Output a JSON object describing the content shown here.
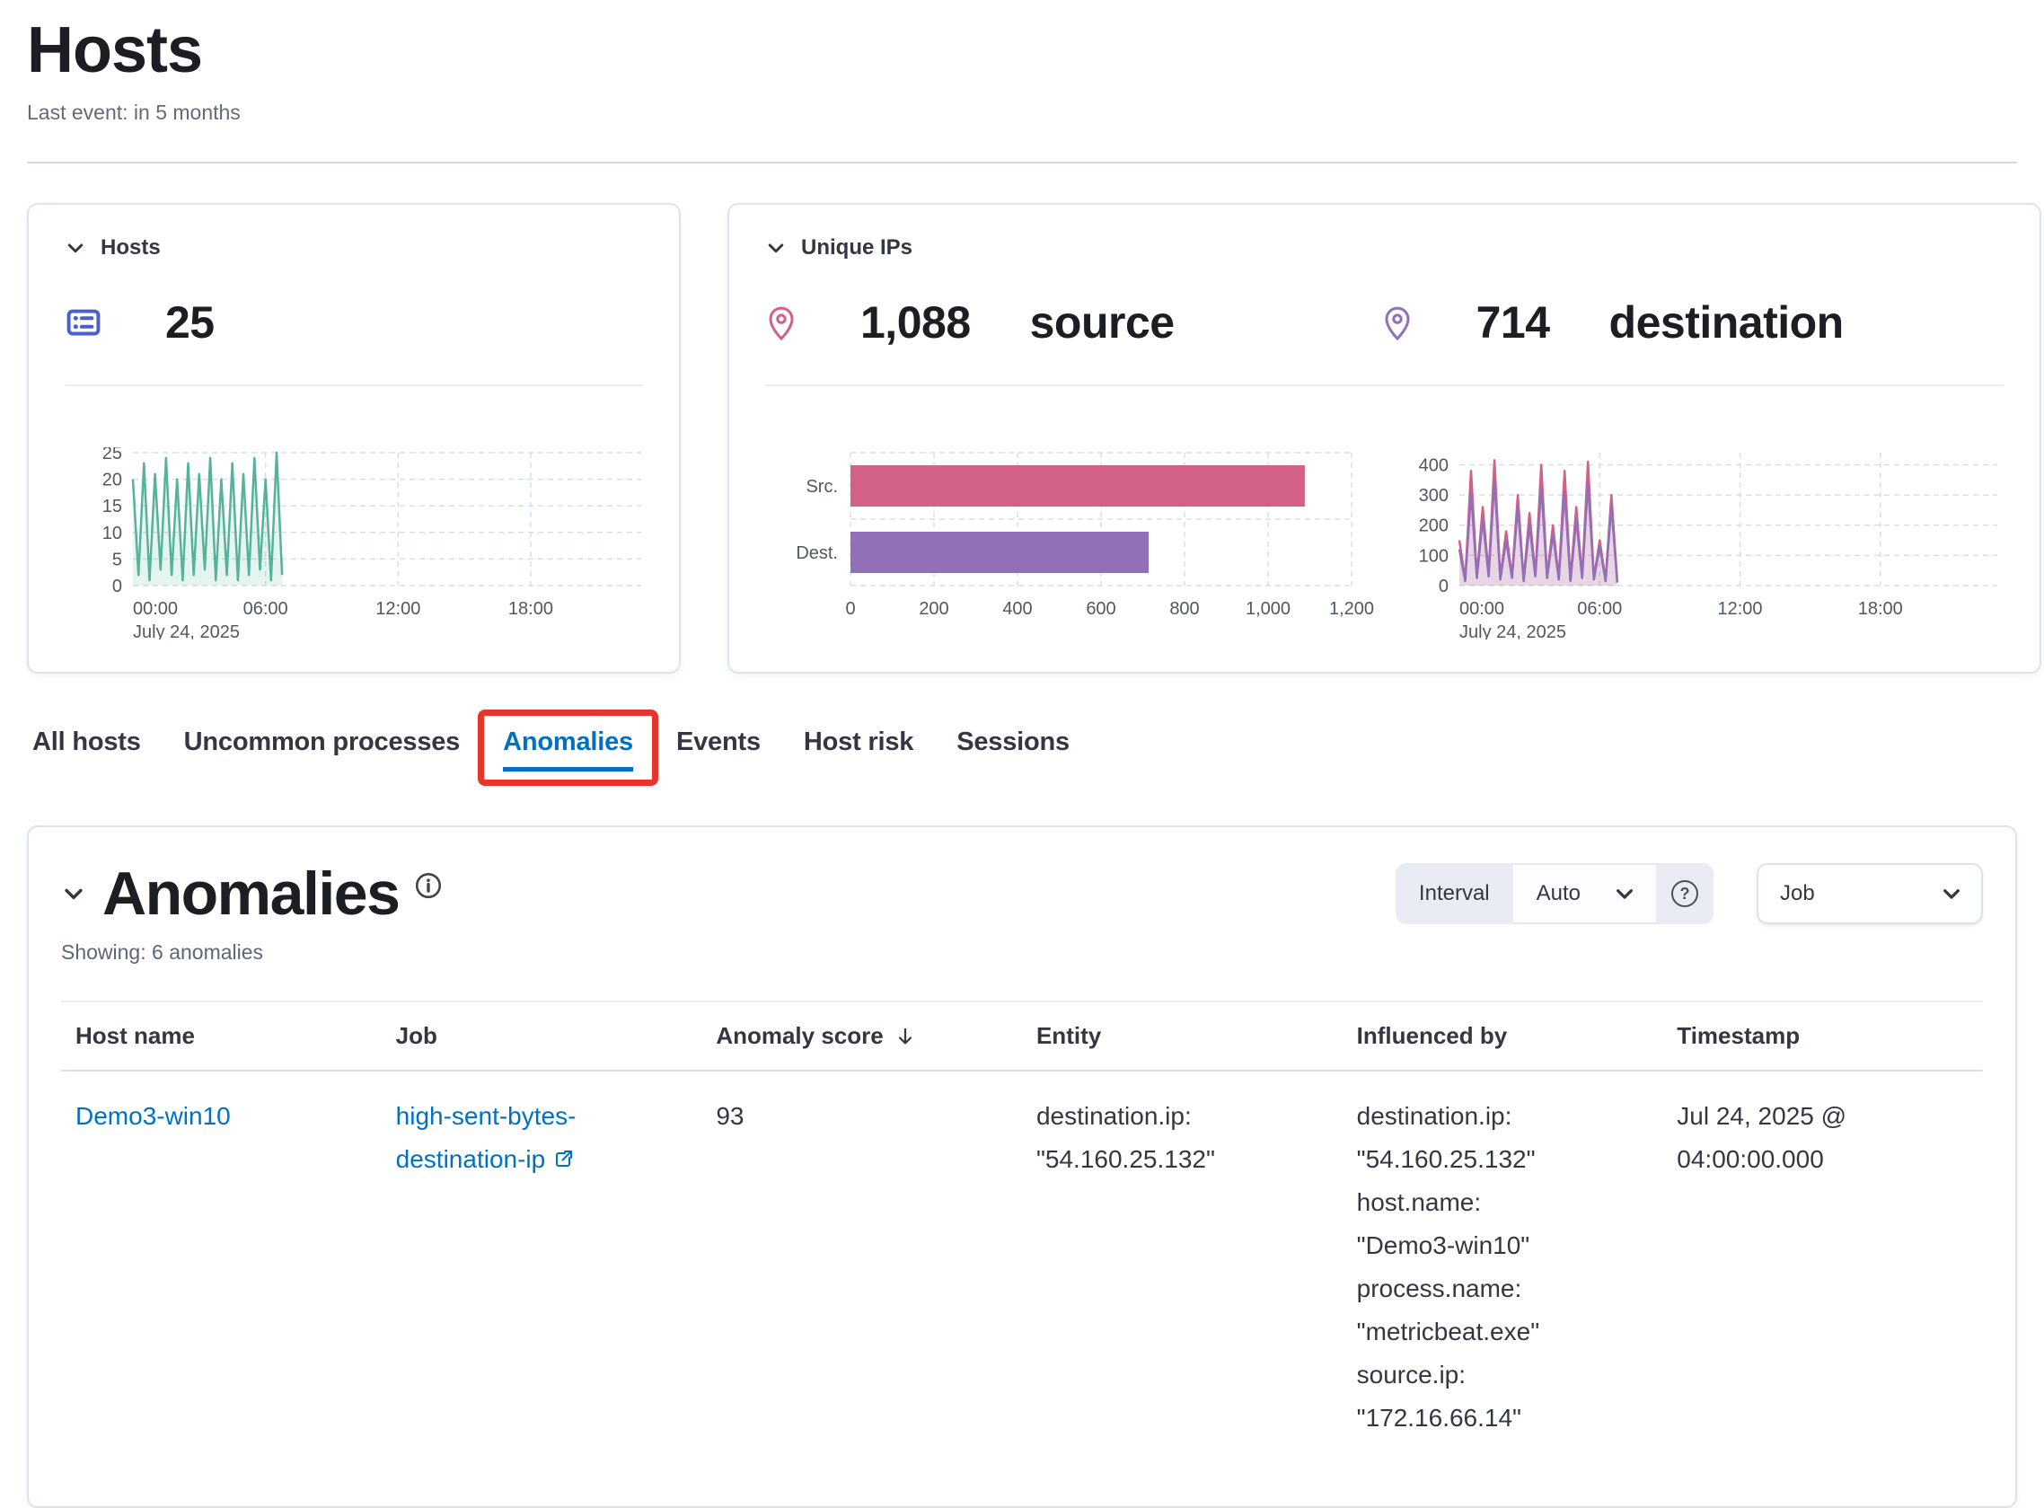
{
  "page": {
    "title": "Hosts",
    "subtitle": "Last event: in 5 months"
  },
  "kpi": {
    "hosts": {
      "title": "Hosts",
      "count": "25",
      "icon_color": "#4a5fc8"
    },
    "unique_ips": {
      "title": "Unique IPs",
      "source": {
        "count": "1,088",
        "label": "source",
        "color": "#D36086"
      },
      "destination": {
        "count": "714",
        "label": "destination",
        "color": "#9170B8"
      }
    }
  },
  "tabs": [
    {
      "label": "All hosts",
      "active": false
    },
    {
      "label": "Uncommon processes",
      "active": false
    },
    {
      "label": "Anomalies",
      "active": true
    },
    {
      "label": "Events",
      "active": false
    },
    {
      "label": "Host risk",
      "active": false
    },
    {
      "label": "Sessions",
      "active": false
    }
  ],
  "annotation": {
    "highlight_color": "#e8352c"
  },
  "anomalies": {
    "title": "Anomalies",
    "showing": "Showing: 6 anomalies",
    "controls": {
      "interval_label": "Interval",
      "interval_value": "Auto",
      "job_label": "Job"
    },
    "table": {
      "columns": [
        "Host name",
        "Job",
        "Anomaly score",
        "Entity",
        "Influenced by",
        "Timestamp"
      ],
      "rows": [
        {
          "host_name": "Demo3-win10",
          "job": "high-sent-bytes-destination-ip",
          "anomaly_score": "93",
          "entity": "destination.ip: \"54.160.25.132\"",
          "influenced_by": "destination.ip: \"54.160.25.132\" host.name: \"Demo3-win10\" process.name: \"metricbeat.exe\" source.ip: \"172.16.66.14\"",
          "timestamp": "Jul 24, 2025 @ 04:00:00.000"
        }
      ]
    }
  },
  "chart_data": [
    {
      "id": "hosts_over_time",
      "type": "area",
      "title": "Hosts over time",
      "ylim": [
        0,
        25
      ],
      "ymax": 25,
      "y_ticks": [
        0,
        5,
        10,
        15,
        20,
        25
      ],
      "x_hours_max": 23,
      "x_ticks": [
        {
          "h": 0,
          "label": "00:00",
          "sub": "July 24, 2025"
        },
        {
          "h": 6,
          "label": "06:00"
        },
        {
          "h": 12,
          "label": "12:00"
        },
        {
          "h": 18,
          "label": "18:00"
        }
      ],
      "hours": [
        0,
        0.25,
        0.5,
        0.75,
        1,
        1.25,
        1.5,
        1.75,
        2,
        2.25,
        2.5,
        2.75,
        3,
        3.25,
        3.5,
        3.75,
        4,
        4.25,
        4.5,
        4.75,
        5,
        5.25,
        5.5,
        5.75,
        6,
        6.25,
        6.5,
        6.75
      ],
      "series": [
        {
          "name": "hosts",
          "color": "#54B399",
          "values": [
            20,
            2,
            23,
            1,
            21,
            3,
            24,
            2,
            20,
            1,
            23,
            2,
            21,
            3,
            24,
            1,
            20,
            2,
            23,
            1,
            21,
            2,
            24,
            3,
            20,
            1,
            25,
            2
          ]
        }
      ]
    },
    {
      "id": "unique_ips_bar",
      "type": "bar",
      "title": "Unique IPs source vs destination",
      "xlim": [
        0,
        1200
      ],
      "x_ticks": [
        {
          "v": 0,
          "label": "0"
        },
        {
          "v": 200,
          "label": "200"
        },
        {
          "v": 400,
          "label": "400"
        },
        {
          "v": 600,
          "label": "600"
        },
        {
          "v": 800,
          "label": "800"
        },
        {
          "v": 1000,
          "label": "1,000"
        },
        {
          "v": 1200,
          "label": "1,200"
        }
      ],
      "bars": [
        {
          "label": "Src.",
          "value": 1088,
          "color": "#D36086"
        },
        {
          "label": "Dest.",
          "value": 714,
          "color": "#9170B8"
        }
      ]
    },
    {
      "id": "unique_ips_over_time",
      "type": "line",
      "title": "Unique IPs over time",
      "ylim": [
        0,
        440
      ],
      "ymax": 440,
      "y_ticks": [
        0,
        100,
        200,
        300,
        400
      ],
      "x_hours_max": 23,
      "x_ticks": [
        {
          "h": 0,
          "label": "00:00",
          "sub": "July 24, 2025"
        },
        {
          "h": 6,
          "label": "06:00"
        },
        {
          "h": 12,
          "label": "12:00"
        },
        {
          "h": 18,
          "label": "18:00"
        }
      ],
      "hours": [
        0,
        0.25,
        0.5,
        0.75,
        1,
        1.25,
        1.5,
        1.75,
        2,
        2.25,
        2.5,
        2.75,
        3,
        3.25,
        3.5,
        3.75,
        4,
        4.25,
        4.5,
        4.75,
        5,
        5.25,
        5.5,
        5.75,
        6,
        6.25,
        6.5,
        6.75
      ],
      "series": [
        {
          "name": "source",
          "color": "#D36086",
          "values": [
            150,
            20,
            380,
            30,
            260,
            40,
            415,
            25,
            180,
            30,
            300,
            20,
            240,
            35,
            400,
            30,
            200,
            25,
            380,
            20,
            260,
            30,
            410,
            25,
            150,
            20,
            300,
            15
          ]
        },
        {
          "name": "destination",
          "color": "#9170B8",
          "values": [
            120,
            15,
            310,
            25,
            220,
            30,
            350,
            20,
            150,
            25,
            260,
            15,
            200,
            30,
            330,
            25,
            170,
            20,
            310,
            15,
            220,
            25,
            340,
            20,
            130,
            15,
            265,
            10
          ]
        }
      ]
    }
  ]
}
